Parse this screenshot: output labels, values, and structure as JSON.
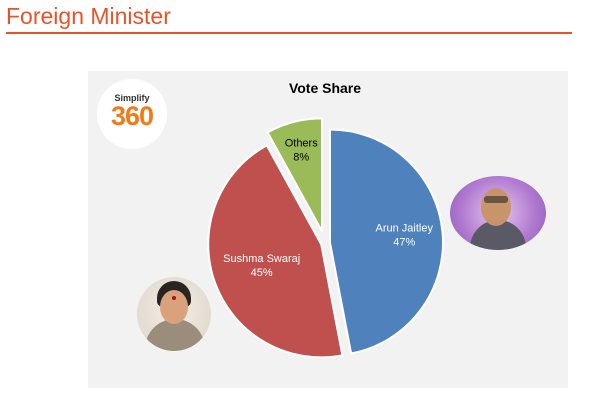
{
  "page": {
    "title": "Foreign Minister"
  },
  "logo": {
    "top_text": "Simplify",
    "number_text": "360"
  },
  "chart_data": {
    "type": "pie",
    "title": "Vote Share",
    "slices": [
      {
        "name": "Arun Jaitley",
        "label": "47%",
        "value": 47,
        "color": "#4f81bd"
      },
      {
        "name": "Sushma Swaraj",
        "label": "45%",
        "value": 45,
        "color": "#c0504d"
      },
      {
        "name": "Others",
        "label": "8%",
        "value": 8,
        "color": "#9bbb59"
      }
    ]
  },
  "icons": {
    "jaitley_photo": "person-photo-icon",
    "swaraj_photo": "person-photo-icon"
  }
}
